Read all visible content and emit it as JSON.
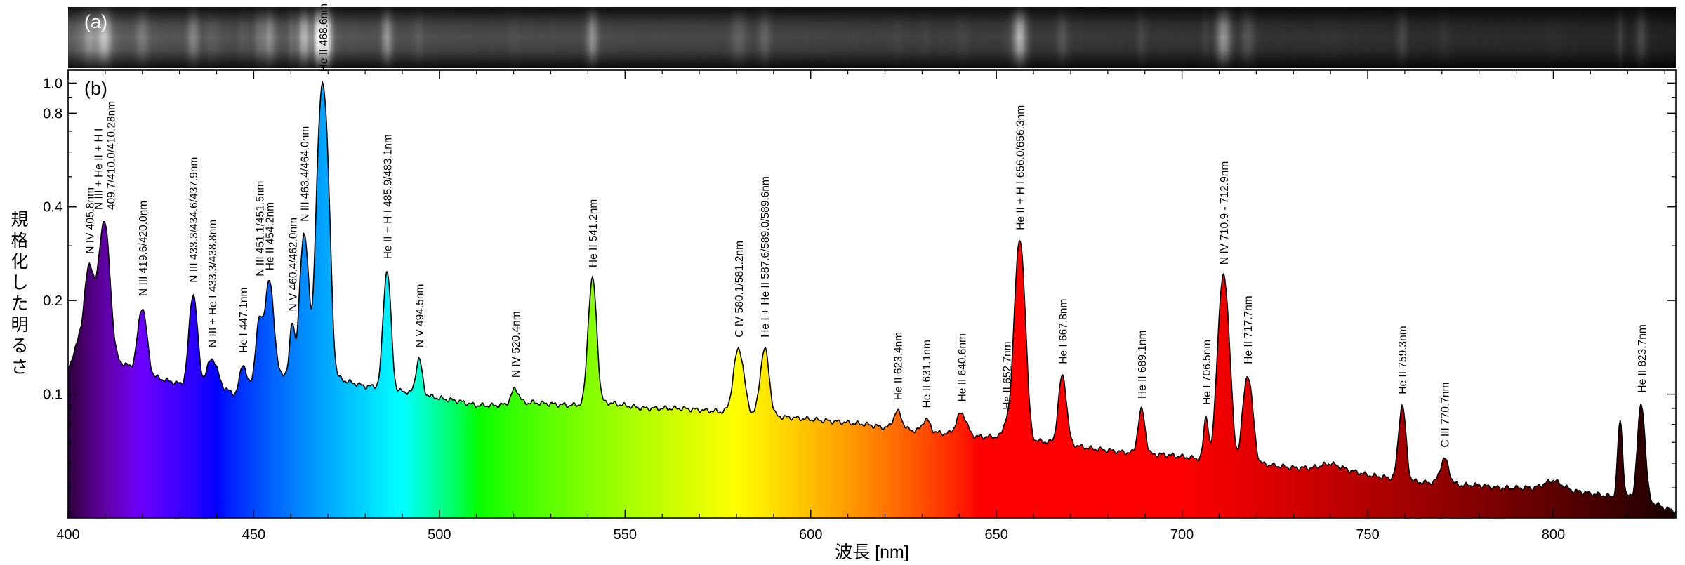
{
  "chart_data": [
    {
      "panel_label": "(a)",
      "type": "heatmap",
      "description_values": "spectral image strip, bright where emission lines occur"
    },
    {
      "panel_label": "(b)",
      "type": "area",
      "xlabel": "波長 [nm]",
      "ylabel": "規格化した明るさ",
      "xlim": [
        400,
        833
      ],
      "ylim": [
        0.04,
        1.1
      ],
      "yscale": "log",
      "x_ticks": [
        "400",
        "450",
        "500",
        "550",
        "600",
        "650",
        "700",
        "750",
        "800"
      ],
      "y_ticks": [
        "0.1",
        "0.2",
        "0.4",
        "0.8",
        "1.0"
      ],
      "continuum": [
        [
          400,
          0.12
        ],
        [
          403,
          0.15
        ],
        [
          410,
          0.135
        ],
        [
          415,
          0.125
        ],
        [
          420,
          0.118
        ],
        [
          425,
          0.112
        ],
        [
          430,
          0.108
        ],
        [
          435,
          0.108
        ],
        [
          440,
          0.107
        ],
        [
          445,
          0.1
        ],
        [
          450,
          0.108
        ],
        [
          455,
          0.11
        ],
        [
          460,
          0.12
        ],
        [
          465,
          0.122
        ],
        [
          470,
          0.116
        ],
        [
          475,
          0.11
        ],
        [
          480,
          0.106
        ],
        [
          485,
          0.106
        ],
        [
          490,
          0.102
        ],
        [
          495,
          0.1
        ],
        [
          500,
          0.097
        ],
        [
          505,
          0.095
        ],
        [
          510,
          0.092
        ],
        [
          515,
          0.092
        ],
        [
          520,
          0.093
        ],
        [
          525,
          0.094
        ],
        [
          530,
          0.093
        ],
        [
          535,
          0.092
        ],
        [
          540,
          0.093
        ],
        [
          545,
          0.094
        ],
        [
          550,
          0.092
        ],
        [
          555,
          0.09
        ],
        [
          560,
          0.09
        ],
        [
          565,
          0.09
        ],
        [
          570,
          0.089
        ],
        [
          575,
          0.088
        ],
        [
          580,
          0.087
        ],
        [
          585,
          0.086
        ],
        [
          590,
          0.085
        ],
        [
          595,
          0.084
        ],
        [
          600,
          0.083
        ],
        [
          605,
          0.082
        ],
        [
          610,
          0.081
        ],
        [
          615,
          0.08
        ],
        [
          620,
          0.078
        ],
        [
          625,
          0.077
        ],
        [
          630,
          0.076
        ],
        [
          635,
          0.075
        ],
        [
          640,
          0.074
        ],
        [
          645,
          0.073
        ],
        [
          650,
          0.073
        ],
        [
          655,
          0.072
        ],
        [
          660,
          0.071
        ],
        [
          665,
          0.07
        ],
        [
          670,
          0.069
        ],
        [
          675,
          0.067
        ],
        [
          680,
          0.066
        ],
        [
          685,
          0.065
        ],
        [
          690,
          0.064
        ],
        [
          695,
          0.064
        ],
        [
          700,
          0.063
        ],
        [
          705,
          0.062
        ],
        [
          710,
          0.061
        ],
        [
          715,
          0.06
        ],
        [
          720,
          0.06
        ],
        [
          725,
          0.059
        ],
        [
          730,
          0.058
        ],
        [
          735,
          0.058
        ],
        [
          740,
          0.06
        ],
        [
          745,
          0.057
        ],
        [
          750,
          0.055
        ],
        [
          755,
          0.054
        ],
        [
          760,
          0.053
        ],
        [
          765,
          0.052
        ],
        [
          770,
          0.052
        ],
        [
          775,
          0.051
        ],
        [
          780,
          0.051
        ],
        [
          785,
          0.05
        ],
        [
          790,
          0.05
        ],
        [
          795,
          0.05
        ],
        [
          800,
          0.053
        ],
        [
          805,
          0.049
        ],
        [
          810,
          0.048
        ],
        [
          815,
          0.047
        ],
        [
          820,
          0.047
        ],
        [
          825,
          0.046
        ],
        [
          830,
          0.043
        ],
        [
          833,
          0.042
        ]
      ],
      "peaks": [
        {
          "x": 405.8,
          "y": 0.26,
          "w": 1.2
        },
        {
          "x": 409.7,
          "y": 0.36,
          "w": 1.3
        },
        {
          "x": 420.0,
          "y": 0.19,
          "w": 1.1
        },
        {
          "x": 433.7,
          "y": 0.21,
          "w": 1.0
        },
        {
          "x": 438.8,
          "y": 0.13,
          "w": 1.3
        },
        {
          "x": 447.1,
          "y": 0.125,
          "w": 0.8
        },
        {
          "x": 451.5,
          "y": 0.17,
          "w": 0.9
        },
        {
          "x": 454.2,
          "y": 0.23,
          "w": 1.1
        },
        {
          "x": 460.4,
          "y": 0.17,
          "w": 0.6
        },
        {
          "x": 463.6,
          "y": 0.33,
          "w": 1.0
        },
        {
          "x": 468.6,
          "y": 1.0,
          "w": 1.2
        },
        {
          "x": 485.9,
          "y": 0.25,
          "w": 0.9
        },
        {
          "x": 494.5,
          "y": 0.13,
          "w": 0.8
        },
        {
          "x": 520.4,
          "y": 0.104,
          "w": 1.0
        },
        {
          "x": 541.2,
          "y": 0.235,
          "w": 1.0
        },
        {
          "x": 580.6,
          "y": 0.14,
          "w": 1.3
        },
        {
          "x": 587.6,
          "y": 0.14,
          "w": 1.1
        },
        {
          "x": 623.4,
          "y": 0.088,
          "w": 1.1
        },
        {
          "x": 631.1,
          "y": 0.083,
          "w": 1.0
        },
        {
          "x": 640.6,
          "y": 0.087,
          "w": 1.3
        },
        {
          "x": 652.7,
          "y": 0.082,
          "w": 0.8
        },
        {
          "x": 656.3,
          "y": 0.31,
          "w": 1.2
        },
        {
          "x": 667.8,
          "y": 0.115,
          "w": 1.0
        },
        {
          "x": 689.1,
          "y": 0.089,
          "w": 0.9
        },
        {
          "x": 706.5,
          "y": 0.085,
          "w": 0.6
        },
        {
          "x": 711.2,
          "y": 0.24,
          "w": 1.3
        },
        {
          "x": 717.7,
          "y": 0.115,
          "w": 1.2
        },
        {
          "x": 759.3,
          "y": 0.092,
          "w": 0.9
        },
        {
          "x": 770.7,
          "y": 0.062,
          "w": 1.1
        },
        {
          "x": 818.0,
          "y": 0.082,
          "w": 0.6
        },
        {
          "x": 823.7,
          "y": 0.093,
          "w": 0.9
        }
      ],
      "annotations": [
        {
          "x": 405.8,
          "y": 0.26,
          "text": "N IV 405.8nm"
        },
        {
          "x": 409.7,
          "y": 0.36,
          "text": "N III + He II + H I\n409.7/410.0/410.28nm"
        },
        {
          "x": 420.0,
          "y": 0.19,
          "text": "N III 419.6/420.0nm"
        },
        {
          "x": 433.7,
          "y": 0.21,
          "text": "N III 433.3/434.6/437.9nm"
        },
        {
          "x": 438.8,
          "y": 0.13,
          "text": "N III + He I 433.3/438.8nm"
        },
        {
          "x": 447.1,
          "y": 0.125,
          "text": "He I 447.1nm"
        },
        {
          "x": 451.5,
          "y": 0.22,
          "text": "N III 451.1/451.5nm"
        },
        {
          "x": 454.2,
          "y": 0.23,
          "text": "He II 454.2nm"
        },
        {
          "x": 460.4,
          "y": 0.17,
          "text": "N V 460.4/462.0nm"
        },
        {
          "x": 463.6,
          "y": 0.33,
          "text": "N III 463.4/464.0nm"
        },
        {
          "x": 468.6,
          "y": 1.0,
          "text": "He II 468.6nm"
        },
        {
          "x": 485.9,
          "y": 0.25,
          "text": "He II + H I 485.9/483.1nm"
        },
        {
          "x": 494.5,
          "y": 0.13,
          "text": "N V 494.5nm"
        },
        {
          "x": 520.4,
          "y": 0.104,
          "text": "N IV 520.4nm"
        },
        {
          "x": 541.2,
          "y": 0.235,
          "text": "He II 541.2nm"
        },
        {
          "x": 580.6,
          "y": 0.14,
          "text": "C IV 580.1/581.2nm"
        },
        {
          "x": 587.6,
          "y": 0.14,
          "text": "He I + He II 587.6/589.0/589.6nm"
        },
        {
          "x": 623.4,
          "y": 0.088,
          "text": "He II 623.4nm"
        },
        {
          "x": 631.1,
          "y": 0.083,
          "text": "He II 631.1nm"
        },
        {
          "x": 640.6,
          "y": 0.087,
          "text": "He II 640.6nm"
        },
        {
          "x": 652.7,
          "y": 0.082,
          "text": "He II 652.7nm"
        },
        {
          "x": 656.3,
          "y": 0.31,
          "text": "He II + H I 656.0/656.3nm"
        },
        {
          "x": 667.8,
          "y": 0.115,
          "text": "He I 667.8nm"
        },
        {
          "x": 689.1,
          "y": 0.089,
          "text": "He II 689.1nm"
        },
        {
          "x": 706.5,
          "y": 0.085,
          "text": "He I 706.5nm"
        },
        {
          "x": 711.2,
          "y": 0.24,
          "text": "N IV 710.9 - 712.9nm"
        },
        {
          "x": 717.7,
          "y": 0.115,
          "text": "He II 717.7nm"
        },
        {
          "x": 759.3,
          "y": 0.092,
          "text": "He II 759.3nm"
        },
        {
          "x": 770.7,
          "y": 0.062,
          "text": "C III 770.7nm"
        },
        {
          "x": 823.7,
          "y": 0.093,
          "text": "He II 823.7nm"
        }
      ]
    }
  ]
}
